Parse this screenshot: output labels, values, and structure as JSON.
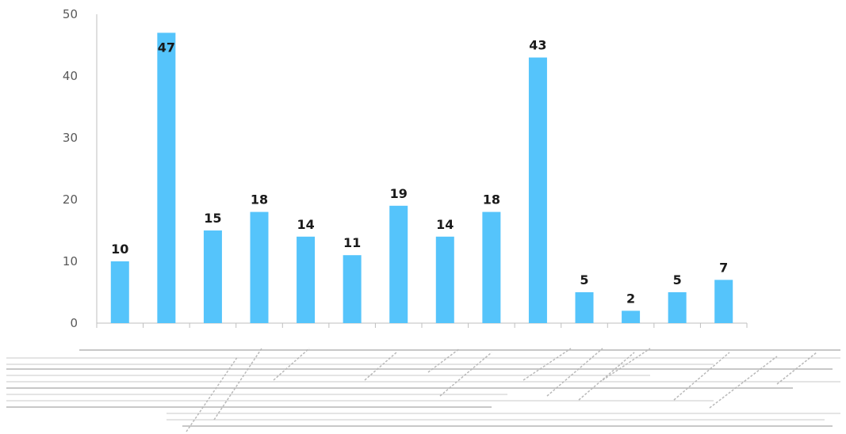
{
  "chart_data": {
    "type": "bar",
    "categories": [
      "",
      "",
      "",
      "",
      "",
      "",
      "",
      "",
      "",
      "",
      "",
      "",
      "",
      ""
    ],
    "values": [
      10,
      47,
      15,
      18,
      14,
      11,
      19,
      14,
      18,
      43,
      5,
      2,
      5,
      7
    ],
    "ylim": [
      0,
      50
    ],
    "yticks": [
      0,
      10,
      20,
      30,
      40,
      50
    ],
    "title": "",
    "xlabel": "",
    "ylabel": "",
    "grid": false,
    "legend": "none",
    "data_labels": true
  },
  "colors": {
    "bar": "#55c4fb",
    "axis": "#bfbfbf",
    "tick_text": "#595959",
    "data_label": "#1a1a1a"
  }
}
